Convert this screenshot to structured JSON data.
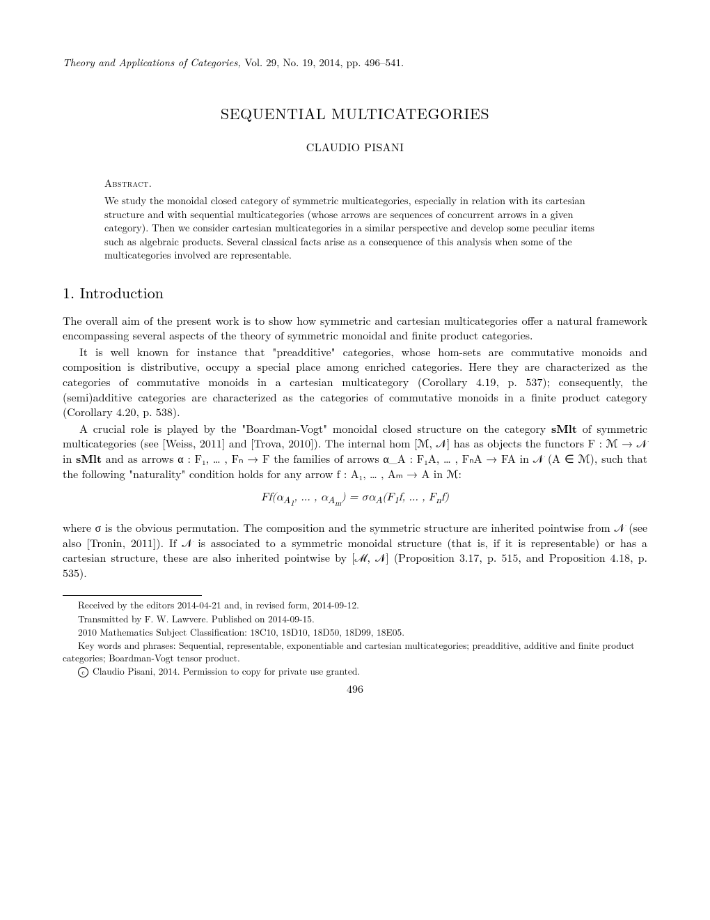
{
  "journal": {
    "name": "Theory and Applications of Categories,",
    "vol_info": "Vol. 29, No. 19, 2014, pp. 496–541."
  },
  "title": "SEQUENTIAL MULTICATEGORIES",
  "author": "CLAUDIO PISANI",
  "abstract": {
    "label": "Abstract.",
    "text": "We study the monoidal closed category of symmetric multicategories, especially in relation with its cartesian structure and with sequential multicategories (whose arrows are sequences of concurrent arrows in a given category). Then we consider cartesian multicategories in a similar perspective and develop some peculiar items such as algebraic products. Several classical facts arise as a consequence of this analysis when some of the multicategories involved are representable."
  },
  "section": {
    "number": "1.",
    "title": "Introduction"
  },
  "paragraphs": {
    "p1": "The overall aim of the present work is to show how symmetric and cartesian multicategories offer a natural framework encompassing several aspects of the theory of symmetric monoidal and finite product categories.",
    "p2": "It is well known for instance that \"preadditive\" categories, whose hom-sets are commutative monoids and composition is distributive, occupy a special place among enriched categories. Here they are characterized as the categories of commutative monoids in a cartesian multicategory (Corollary 4.19, p. 537); consequently, the (semi)additive categories are characterized as the categories of commutative monoids in a finite product category (Corollary 4.20, p. 538).",
    "p3a": "A crucial role is played by the \"Boardman-Vogt\" monoidal closed structure on the category ",
    "p3b": " of symmetric multicategories (see [Weiss, 2011] and [Trova, 2010]). The internal hom [ℳ, 𝒩] has as objects the functors F : ℳ → 𝒩 in ",
    "p3c": " and as arrows α : F₁, … , Fₙ → F the families of arrows α_A : F₁A, … , FₙA → FA in 𝒩 (A ∈ ℳ), such that the following \"naturality\" condition holds for any arrow f : A₁, … , Aₘ → A in ℳ:",
    "smlt": "sMlt",
    "eq": "Ff(α_{A₁}, … , α_{Aₘ}) = σα_A(F₁f, … , Fₙf)",
    "p4": "where σ is the obvious permutation. The composition and the symmetric structure are inherited pointwise from 𝒩 (see also [Tronin, 2011]). If 𝒩 is associated to a symmetric monoidal structure (that is, if it is representable) or has a cartesian structure, these are also inherited pointwise by [ℳ, 𝒩] (Proposition 3.17, p. 515, and Proposition 4.18, p. 535)."
  },
  "footnotes": {
    "received": "Received by the editors 2014-04-21 and, in revised form, 2014-09-12.",
    "transmitted": "Transmitted by F. W. Lawvere. Published on 2014-09-15.",
    "msc": "2010 Mathematics Subject Classification: 18C10, 18D10, 18D50, 18D99, 18E05.",
    "keywords": "Key words and phrases: Sequential, representable, exponentiable and cartesian multicategories; preadditive, additive and finite product categories; Boardman-Vogt tensor product.",
    "copyright": "Claudio Pisani, 2014. Permission to copy for private use granted."
  },
  "page_number": "496"
}
